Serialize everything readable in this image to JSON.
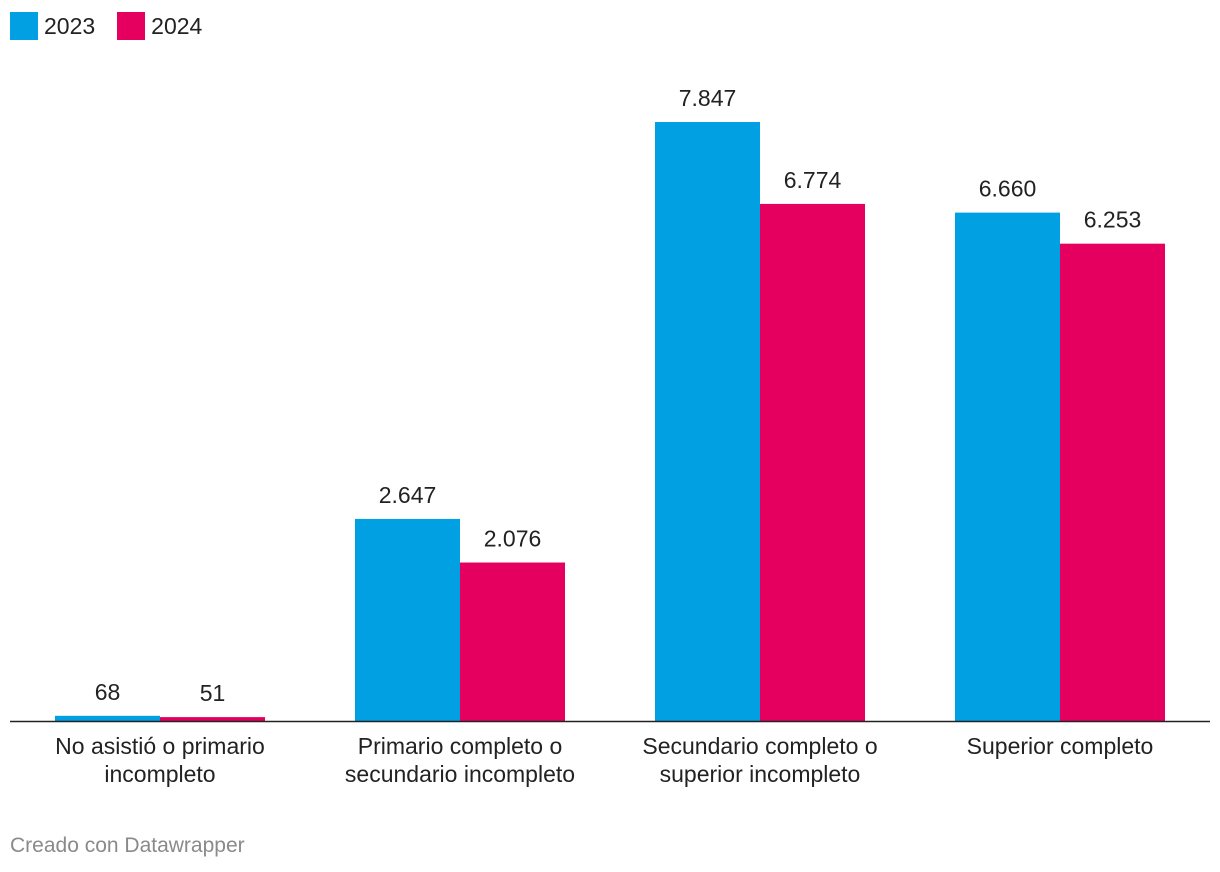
{
  "chart_data": {
    "type": "bar",
    "title": "",
    "xlabel": "",
    "ylabel": "",
    "categories": [
      [
        "No asistió o primario",
        "incompleto"
      ],
      [
        "Primario completo o",
        "secundario incompleto"
      ],
      [
        "Secundario completo o",
        "superior incompleto"
      ],
      [
        "Superior completo"
      ]
    ],
    "series": [
      {
        "name": "2023",
        "color": "#00A0E3",
        "values": [
          68,
          2647,
          7847,
          6660
        ],
        "labels": [
          "68",
          "2.647",
          "7.847",
          "6.660"
        ]
      },
      {
        "name": "2024",
        "color": "#E5005F",
        "values": [
          51,
          2076,
          6774,
          6253
        ],
        "labels": [
          "51",
          "2.076",
          "6.774",
          "6.253"
        ]
      }
    ],
    "ylim": [
      0,
      7847
    ],
    "grid": false,
    "legend_position": "top-left"
  },
  "legend": {
    "item_2023": "2023",
    "item_2024": "2024",
    "color_2023": "#00A0E3",
    "color_2024": "#E5005F"
  },
  "footer": {
    "credit": "Creado con Datawrapper"
  }
}
